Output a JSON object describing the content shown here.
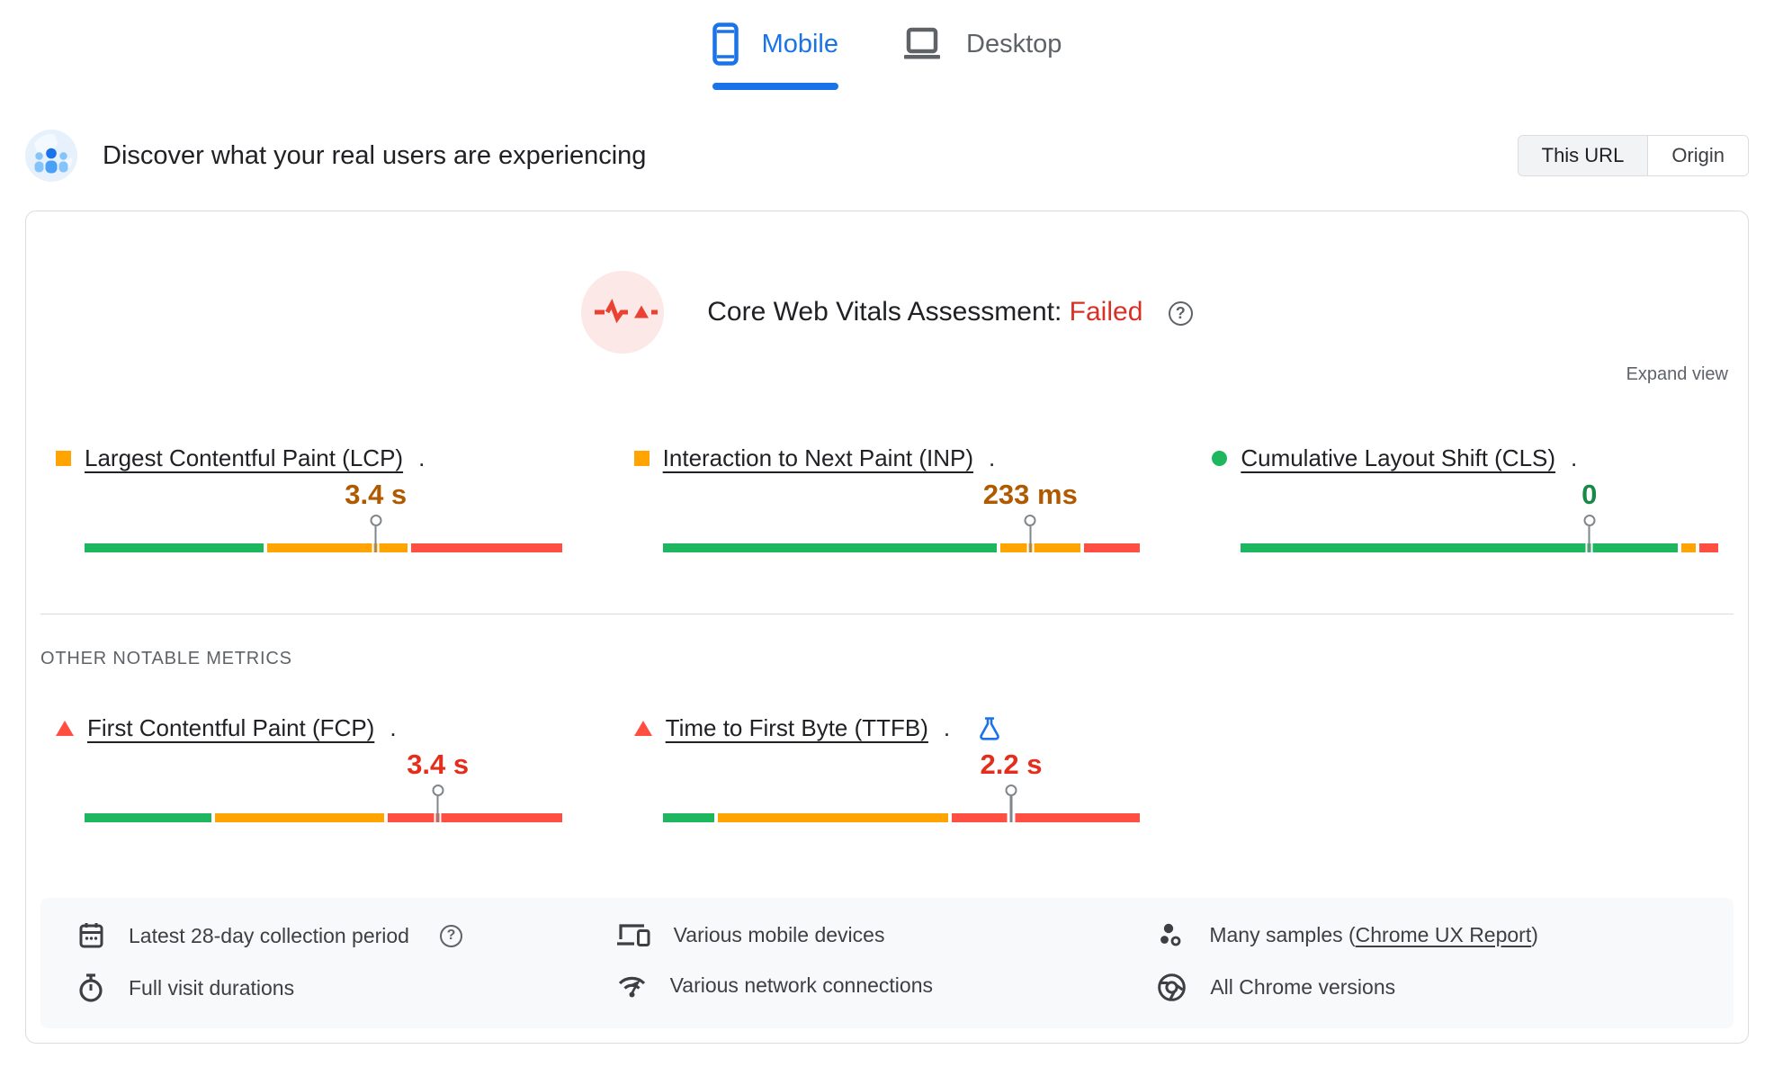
{
  "tabs": [
    {
      "label": "Mobile",
      "active": true
    },
    {
      "label": "Desktop",
      "active": false
    }
  ],
  "header": {
    "title": "Discover what your real users are experiencing",
    "scope_toggle": {
      "options": [
        "This URL",
        "Origin"
      ],
      "selected": "This URL"
    }
  },
  "assessment": {
    "title": "Core Web Vitals Assessment:",
    "status": "Failed",
    "expand_label": "Expand view"
  },
  "sections": {
    "other_metrics_label": "OTHER NOTABLE METRICS"
  },
  "core_metrics": [
    {
      "name": "Largest Contentful Paint (LCP)",
      "suffix": ".",
      "value": "3.4 s",
      "rating": "needs-improvement",
      "distribution": {
        "good_pct": 38,
        "needs_improvement_pct": 30,
        "poor_pct": 32
      },
      "p75_marker_pct": 61,
      "experimental": false
    },
    {
      "name": "Interaction to Next Paint (INP)",
      "suffix": ".",
      "value": "233 ms",
      "rating": "needs-improvement",
      "distribution": {
        "good_pct": 71,
        "needs_improvement_pct": 17,
        "poor_pct": 12
      },
      "p75_marker_pct": 77,
      "experimental": false
    },
    {
      "name": "Cumulative Layout Shift (CLS)",
      "suffix": ".",
      "value": "0",
      "rating": "good",
      "distribution": {
        "good_pct": 93,
        "needs_improvement_pct": 3,
        "poor_pct": 4
      },
      "p75_marker_pct": 73,
      "experimental": false
    }
  ],
  "other_metrics": [
    {
      "name": "First Contentful Paint (FCP)",
      "suffix": ".",
      "value": "3.4 s",
      "rating": "poor",
      "distribution": {
        "good_pct": 27,
        "needs_improvement_pct": 36,
        "poor_pct": 37
      },
      "p75_marker_pct": 74,
      "experimental": false
    },
    {
      "name": "Time to First Byte (TTFB)",
      "suffix": ".",
      "value": "2.2 s",
      "rating": "poor",
      "distribution": {
        "good_pct": 11,
        "needs_improvement_pct": 49,
        "poor_pct": 40
      },
      "p75_marker_pct": 73,
      "experimental": true
    }
  ],
  "footer": {
    "columns": [
      [
        {
          "icon": "calendar-icon",
          "text": "Latest 28-day collection period",
          "has_help": true
        },
        {
          "icon": "stopwatch-icon",
          "text": "Full visit durations"
        }
      ],
      [
        {
          "icon": "devices-icon",
          "text": "Various mobile devices"
        },
        {
          "icon": "network-icon",
          "text": "Various network connections"
        }
      ],
      [
        {
          "icon": "samples-icon",
          "prefix": "Many samples (",
          "link": "Chrome UX Report",
          "suffix": ")"
        },
        {
          "icon": "chrome-icon",
          "text": "All Chrome versions"
        }
      ]
    ]
  },
  "colors": {
    "accent_blue": "#1a73e8",
    "good_green": "#1eb65f",
    "needs_improvement_orange": "#ffa400",
    "poor_red": "#ff4e42",
    "good_text": "#188948",
    "needs_improvement_text": "#b05a00",
    "poor_text": "#e52d1c",
    "failed_text": "#d93025"
  }
}
